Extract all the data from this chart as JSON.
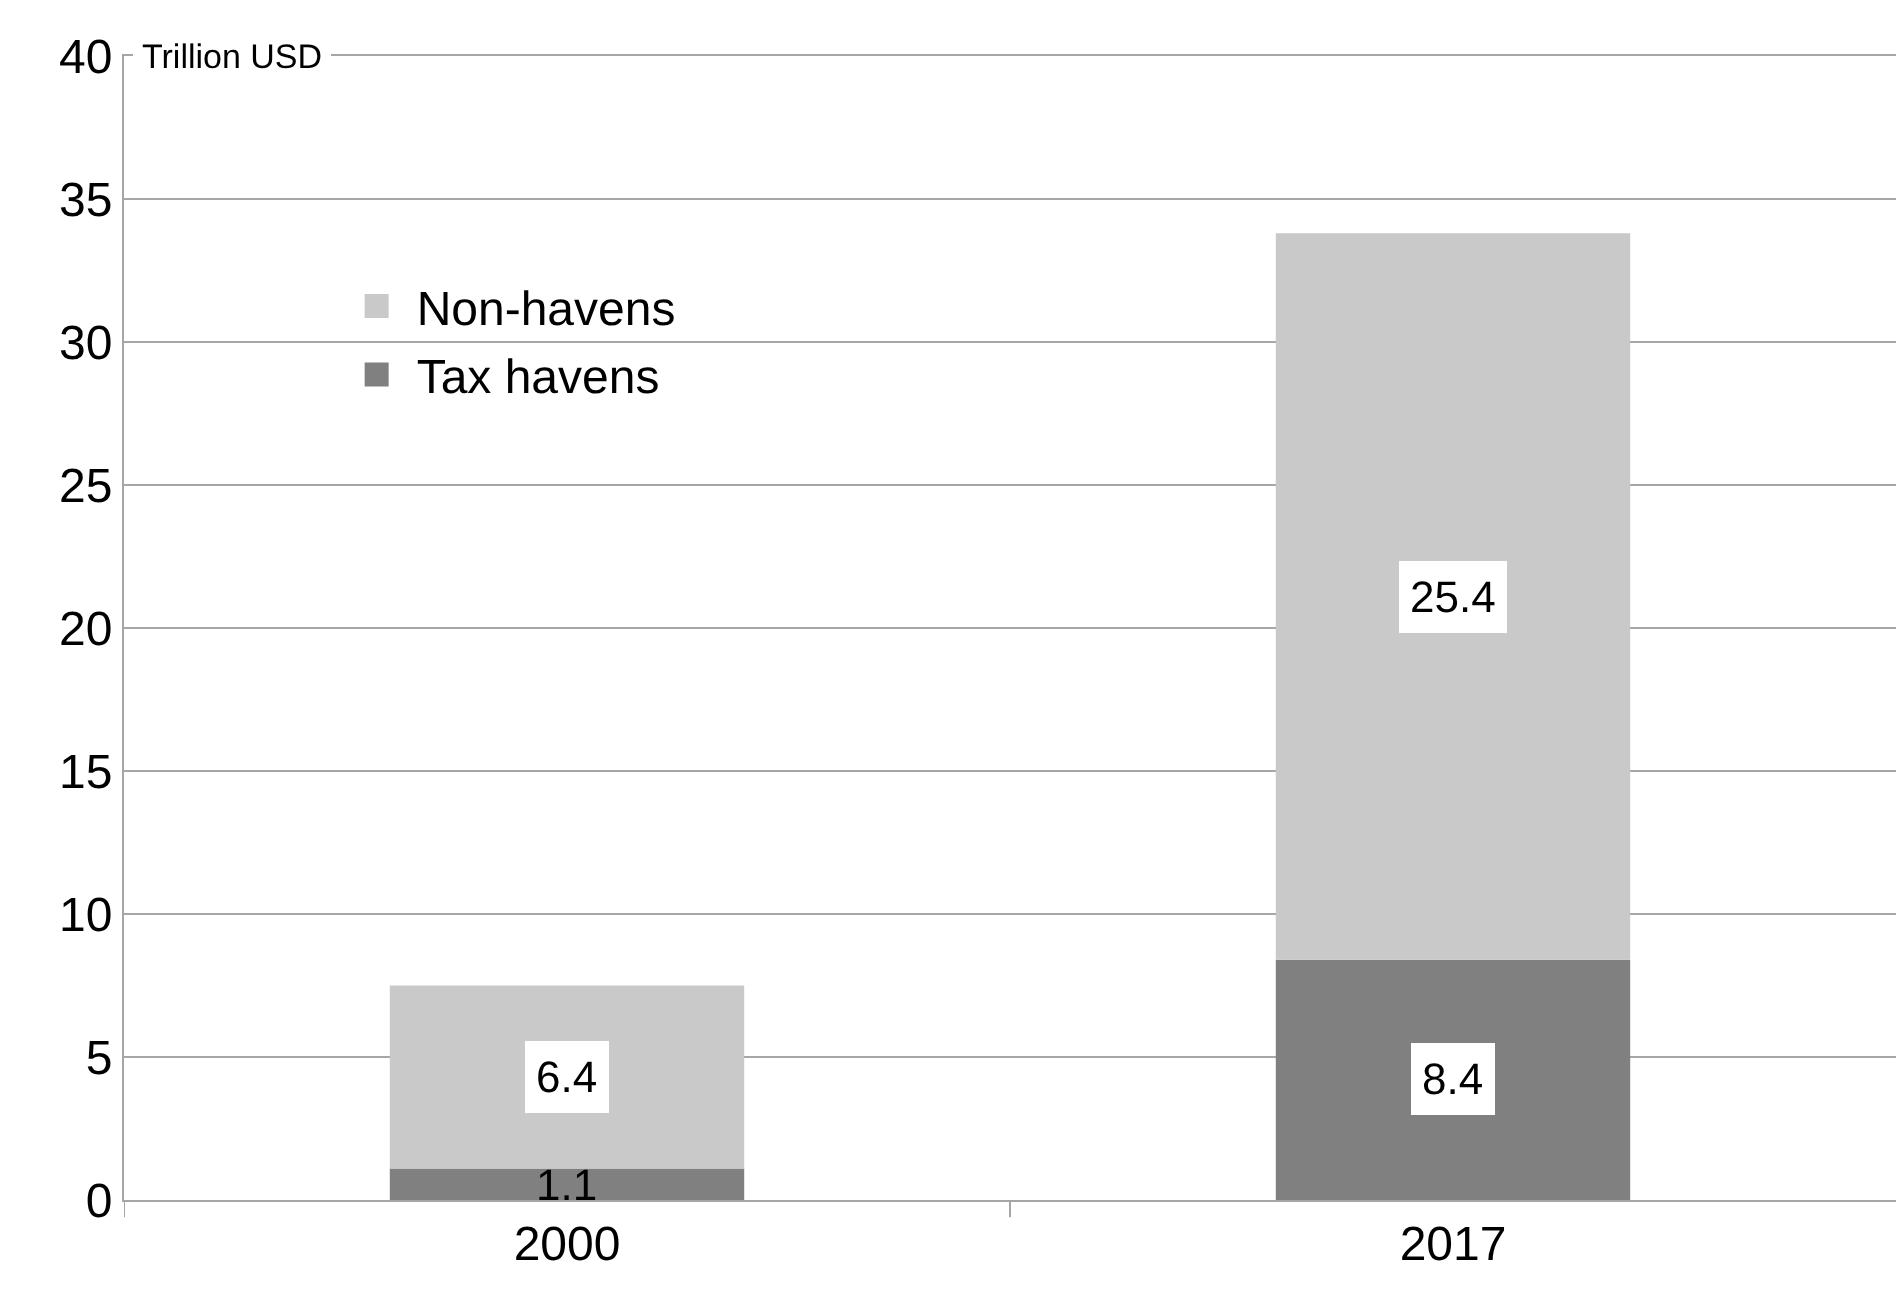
{
  "chart_data": {
    "type": "bar",
    "stacked": true,
    "ylabel": "Trillion USD",
    "categories": [
      "2000",
      "2017"
    ],
    "series": [
      {
        "name": "Tax havens",
        "color": "#808080",
        "values": [
          1.1,
          8.4
        ]
      },
      {
        "name": "Non-havens",
        "color": "#c8c9c8",
        "values": [
          6.4,
          25.4
        ]
      }
    ],
    "ylim": [
      0,
      40
    ],
    "yticks": [
      0,
      5,
      10,
      15,
      20,
      25,
      30,
      35,
      40
    ],
    "grid": "y",
    "legend": "top left",
    "data_labels": true
  }
}
